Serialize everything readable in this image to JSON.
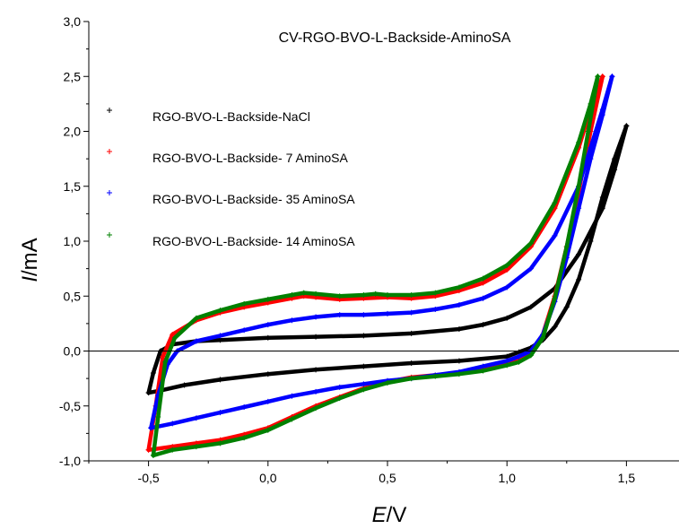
{
  "chart_data": {
    "type": "scatter",
    "title": "CV-RGO-BVO-L-Backside-AminoSA",
    "xlabel": {
      "italic": "E",
      "rest": "/V"
    },
    "ylabel": {
      "italic": "I",
      "rest": "/mA"
    },
    "xlim": [
      -0.75,
      1.72
    ],
    "ylim": [
      -1.0,
      3.0
    ],
    "x_ticks": [
      -0.5,
      0.0,
      0.5,
      1.0,
      1.5
    ],
    "x_tick_labels": [
      "-0,5",
      "0,0",
      "0,5",
      "1,0",
      "1,5"
    ],
    "y_ticks": [
      -1.0,
      -0.5,
      0.0,
      0.5,
      1.0,
      1.5,
      2.0,
      2.5,
      3.0
    ],
    "y_tick_labels": [
      "-1,0",
      "-0,5",
      "0,0",
      "0,5",
      "1,0",
      "1,5",
      "2,0",
      "2,5",
      "3,0"
    ],
    "zero_line": true,
    "grid": false,
    "legend_position": "top-left",
    "series": [
      {
        "name": "RGO-BVO-L-Backside-NaCl",
        "color": "#000000",
        "marker": "+",
        "forward": [
          [
            -0.5,
            -0.38
          ],
          [
            -0.48,
            -0.2
          ],
          [
            -0.45,
            0.0
          ],
          [
            -0.4,
            0.06
          ],
          [
            -0.3,
            0.09
          ],
          [
            -0.2,
            0.1
          ],
          [
            0.0,
            0.12
          ],
          [
            0.2,
            0.13
          ],
          [
            0.4,
            0.14
          ],
          [
            0.6,
            0.16
          ],
          [
            0.8,
            0.2
          ],
          [
            0.9,
            0.24
          ],
          [
            1.0,
            0.3
          ],
          [
            1.1,
            0.4
          ],
          [
            1.2,
            0.57
          ],
          [
            1.3,
            0.88
          ],
          [
            1.4,
            1.3
          ],
          [
            1.45,
            1.65
          ],
          [
            1.5,
            2.05
          ]
        ],
        "reverse": [
          [
            1.5,
            2.05
          ],
          [
            1.45,
            1.75
          ],
          [
            1.4,
            1.4
          ],
          [
            1.35,
            1.0
          ],
          [
            1.3,
            0.65
          ],
          [
            1.25,
            0.4
          ],
          [
            1.2,
            0.22
          ],
          [
            1.15,
            0.1
          ],
          [
            1.1,
            0.03
          ],
          [
            1.05,
            -0.01
          ],
          [
            1.0,
            -0.05
          ],
          [
            0.8,
            -0.09
          ],
          [
            0.6,
            -0.11
          ],
          [
            0.4,
            -0.14
          ],
          [
            0.2,
            -0.17
          ],
          [
            0.0,
            -0.21
          ],
          [
            -0.2,
            -0.26
          ],
          [
            -0.35,
            -0.31
          ],
          [
            -0.45,
            -0.36
          ],
          [
            -0.5,
            -0.38
          ]
        ]
      },
      {
        "name": "RGO-BVO-L-Backside- 7 AminoSA",
        "color": "#ff0000",
        "marker": "+",
        "forward": [
          [
            -0.5,
            -0.9
          ],
          [
            -0.47,
            -0.5
          ],
          [
            -0.44,
            -0.05
          ],
          [
            -0.4,
            0.15
          ],
          [
            -0.3,
            0.28
          ],
          [
            -0.2,
            0.35
          ],
          [
            -0.1,
            0.4
          ],
          [
            0.0,
            0.44
          ],
          [
            0.1,
            0.48
          ],
          [
            0.15,
            0.5
          ],
          [
            0.2,
            0.49
          ],
          [
            0.3,
            0.47
          ],
          [
            0.4,
            0.48
          ],
          [
            0.5,
            0.49
          ],
          [
            0.6,
            0.48
          ],
          [
            0.7,
            0.5
          ],
          [
            0.8,
            0.55
          ],
          [
            0.9,
            0.62
          ],
          [
            1.0,
            0.74
          ],
          [
            1.1,
            0.95
          ],
          [
            1.2,
            1.3
          ],
          [
            1.3,
            1.85
          ],
          [
            1.35,
            2.2
          ],
          [
            1.4,
            2.5
          ]
        ],
        "reverse": [
          [
            1.4,
            2.5
          ],
          [
            1.35,
            2.0
          ],
          [
            1.3,
            1.45
          ],
          [
            1.25,
            0.95
          ],
          [
            1.2,
            0.5
          ],
          [
            1.15,
            0.15
          ],
          [
            1.1,
            -0.02
          ],
          [
            1.05,
            -0.08
          ],
          [
            1.0,
            -0.12
          ],
          [
            0.9,
            -0.17
          ],
          [
            0.8,
            -0.2
          ],
          [
            0.7,
            -0.22
          ],
          [
            0.6,
            -0.24
          ],
          [
            0.5,
            -0.28
          ],
          [
            0.4,
            -0.34
          ],
          [
            0.3,
            -0.42
          ],
          [
            0.2,
            -0.5
          ],
          [
            0.1,
            -0.6
          ],
          [
            0.0,
            -0.7
          ],
          [
            -0.1,
            -0.76
          ],
          [
            -0.2,
            -0.81
          ],
          [
            -0.3,
            -0.84
          ],
          [
            -0.4,
            -0.87
          ],
          [
            -0.5,
            -0.9
          ]
        ]
      },
      {
        "name": "RGO-BVO-L-Backside- 35 AminoSA",
        "color": "#0000ff",
        "marker": "+",
        "forward": [
          [
            -0.49,
            -0.7
          ],
          [
            -0.46,
            -0.4
          ],
          [
            -0.42,
            -0.12
          ],
          [
            -0.38,
            0.0
          ],
          [
            -0.3,
            0.09
          ],
          [
            -0.2,
            0.14
          ],
          [
            -0.1,
            0.19
          ],
          [
            0.0,
            0.24
          ],
          [
            0.1,
            0.28
          ],
          [
            0.2,
            0.31
          ],
          [
            0.3,
            0.33
          ],
          [
            0.4,
            0.33
          ],
          [
            0.5,
            0.34
          ],
          [
            0.6,
            0.35
          ],
          [
            0.7,
            0.38
          ],
          [
            0.8,
            0.42
          ],
          [
            0.9,
            0.48
          ],
          [
            1.0,
            0.58
          ],
          [
            1.1,
            0.75
          ],
          [
            1.2,
            1.05
          ],
          [
            1.3,
            1.5
          ],
          [
            1.35,
            1.85
          ],
          [
            1.4,
            2.2
          ],
          [
            1.44,
            2.5
          ]
        ],
        "reverse": [
          [
            1.44,
            2.5
          ],
          [
            1.4,
            2.15
          ],
          [
            1.35,
            1.75
          ],
          [
            1.3,
            1.3
          ],
          [
            1.25,
            0.85
          ],
          [
            1.2,
            0.45
          ],
          [
            1.15,
            0.15
          ],
          [
            1.1,
            0.0
          ],
          [
            1.05,
            -0.05
          ],
          [
            1.0,
            -0.09
          ],
          [
            0.9,
            -0.14
          ],
          [
            0.8,
            -0.19
          ],
          [
            0.7,
            -0.22
          ],
          [
            0.6,
            -0.25
          ],
          [
            0.5,
            -0.27
          ],
          [
            0.4,
            -0.3
          ],
          [
            0.3,
            -0.33
          ],
          [
            0.2,
            -0.37
          ],
          [
            0.1,
            -0.41
          ],
          [
            0.0,
            -0.46
          ],
          [
            -0.1,
            -0.51
          ],
          [
            -0.2,
            -0.56
          ],
          [
            -0.3,
            -0.61
          ],
          [
            -0.4,
            -0.66
          ],
          [
            -0.49,
            -0.7
          ]
        ]
      },
      {
        "name": "RGO-BVO-L-Backside- 14 AminoSA",
        "color": "#008000",
        "marker": "+",
        "forward": [
          [
            -0.48,
            -0.95
          ],
          [
            -0.46,
            -0.6
          ],
          [
            -0.43,
            -0.1
          ],
          [
            -0.39,
            0.12
          ],
          [
            -0.3,
            0.3
          ],
          [
            -0.2,
            0.37
          ],
          [
            -0.1,
            0.43
          ],
          [
            0.0,
            0.47
          ],
          [
            0.1,
            0.51
          ],
          [
            0.15,
            0.53
          ],
          [
            0.2,
            0.52
          ],
          [
            0.3,
            0.5
          ],
          [
            0.4,
            0.51
          ],
          [
            0.45,
            0.52
          ],
          [
            0.5,
            0.51
          ],
          [
            0.6,
            0.51
          ],
          [
            0.7,
            0.53
          ],
          [
            0.8,
            0.58
          ],
          [
            0.9,
            0.66
          ],
          [
            1.0,
            0.78
          ],
          [
            1.1,
            0.98
          ],
          [
            1.2,
            1.35
          ],
          [
            1.3,
            1.9
          ],
          [
            1.35,
            2.25
          ],
          [
            1.38,
            2.5
          ]
        ],
        "reverse": [
          [
            1.38,
            2.5
          ],
          [
            1.34,
            2.0
          ],
          [
            1.3,
            1.5
          ],
          [
            1.25,
            0.95
          ],
          [
            1.2,
            0.48
          ],
          [
            1.15,
            0.12
          ],
          [
            1.1,
            -0.04
          ],
          [
            1.05,
            -0.1
          ],
          [
            1.0,
            -0.13
          ],
          [
            0.9,
            -0.18
          ],
          [
            0.8,
            -0.21
          ],
          [
            0.7,
            -0.23
          ],
          [
            0.6,
            -0.25
          ],
          [
            0.5,
            -0.29
          ],
          [
            0.4,
            -0.35
          ],
          [
            0.3,
            -0.43
          ],
          [
            0.2,
            -0.52
          ],
          [
            0.1,
            -0.62
          ],
          [
            0.0,
            -0.72
          ],
          [
            -0.1,
            -0.79
          ],
          [
            -0.2,
            -0.84
          ],
          [
            -0.3,
            -0.87
          ],
          [
            -0.4,
            -0.9
          ],
          [
            -0.48,
            -0.95
          ]
        ]
      }
    ]
  }
}
